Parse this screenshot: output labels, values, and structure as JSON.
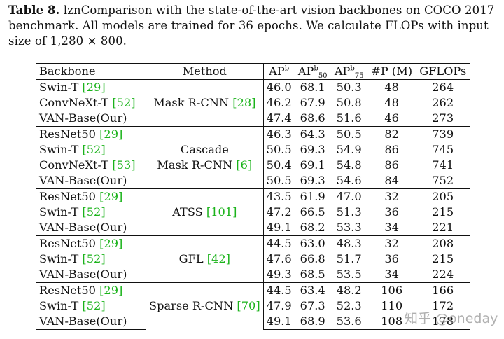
{
  "caption": {
    "label": "Table 8.",
    "text": " lznComparison with the state-of-the-art vision backbones on COCO 2017 benchmark. All models are trained for 36 epochs. We calculate FLOPs with input size of 1,280 × 800."
  },
  "table": {
    "headers": {
      "backbone": "Backbone",
      "method": "Method",
      "ap": "AP",
      "ap_sup": "b",
      "ap50": "AP",
      "ap50_sup": "b",
      "ap50_sub": "50",
      "ap75": "AP",
      "ap75_sup": "b",
      "ap75_sub": "75",
      "params": "#P (M)",
      "gflops": "GFLOPs"
    },
    "groups": [
      {
        "method": "Mask R-CNN",
        "method_line2": "",
        "method_cite": "[28]",
        "rows": [
          {
            "backbone": "Swin-T",
            "cite": "[29]",
            "ap": "46.0",
            "ap50": "68.1",
            "ap75": "50.3",
            "params": "48",
            "gflops": "264",
            "bold": [
              false,
              false,
              false
            ]
          },
          {
            "backbone": "ConvNeXt-T",
            "cite": "[52]",
            "ap": "46.2",
            "ap50": "67.9",
            "ap75": "50.8",
            "params": "48",
            "gflops": "262",
            "bold": [
              false,
              false,
              false
            ]
          },
          {
            "backbone": "VAN-Base(Our)",
            "cite": "",
            "ap": "47.4",
            "ap50": "68.6",
            "ap75": "51.6",
            "params": "46",
            "gflops": "273",
            "bold": [
              true,
              true,
              true
            ]
          }
        ]
      },
      {
        "method": "Cascade",
        "method_line2": "Mask R-CNN",
        "method_cite": "[6]",
        "rows": [
          {
            "backbone": "ResNet50",
            "cite": "[29]",
            "ap": "46.3",
            "ap50": "64.3",
            "ap75": "50.5",
            "params": "82",
            "gflops": "739",
            "bold": [
              false,
              false,
              false
            ]
          },
          {
            "backbone": "Swin-T",
            "cite": "[52]",
            "ap": "50.5",
            "ap50": "69.3",
            "ap75": "54.9",
            "params": "86",
            "gflops": "745",
            "bold": [
              true,
              true,
              true
            ]
          },
          {
            "backbone": "ConvNeXt-T",
            "cite": "[53]",
            "ap": "50.4",
            "ap50": "69.1",
            "ap75": "54.8",
            "params": "86",
            "gflops": "741",
            "bold": [
              false,
              false,
              false
            ]
          },
          {
            "backbone": "VAN-Base(Our)",
            "cite": "",
            "ap": "50.5",
            "ap50": "69.3",
            "ap75": "54.6",
            "params": "84",
            "gflops": "752",
            "bold": [
              true,
              true,
              false
            ]
          }
        ]
      },
      {
        "method": "ATSS",
        "method_line2": "",
        "method_cite": "[101]",
        "rows": [
          {
            "backbone": "ResNet50",
            "cite": "[29]",
            "ap": "43.5",
            "ap50": "61.9",
            "ap75": "47.0",
            "params": "32",
            "gflops": "205",
            "bold": [
              false,
              false,
              false
            ]
          },
          {
            "backbone": "Swin-T",
            "cite": "[52]",
            "ap": "47.2",
            "ap50": "66.5",
            "ap75": "51.3",
            "params": "36",
            "gflops": "215",
            "bold": [
              false,
              false,
              false
            ]
          },
          {
            "backbone": "VAN-Base(Our)",
            "cite": "",
            "ap": "49.1",
            "ap50": "68.2",
            "ap75": "53.3",
            "params": "34",
            "gflops": "221",
            "bold": [
              true,
              true,
              true
            ]
          }
        ]
      },
      {
        "method": "GFL",
        "method_line2": "",
        "method_cite": "[42]",
        "rows": [
          {
            "backbone": "ResNet50",
            "cite": "[29]",
            "ap": "44.5",
            "ap50": "63.0",
            "ap75": "48.3",
            "params": "32",
            "gflops": "208",
            "bold": [
              false,
              false,
              false
            ]
          },
          {
            "backbone": "Swin-T",
            "cite": "[52]",
            "ap": "47.6",
            "ap50": "66.8",
            "ap75": "51.7",
            "params": "36",
            "gflops": "215",
            "bold": [
              false,
              false,
              false
            ]
          },
          {
            "backbone": "VAN-Base(Our)",
            "cite": "",
            "ap": "49.3",
            "ap50": "68.5",
            "ap75": "53.5",
            "params": "34",
            "gflops": "224",
            "bold": [
              true,
              true,
              true
            ]
          }
        ]
      },
      {
        "method": "Sparse R-CNN",
        "method_line2": "",
        "method_cite": "[70]",
        "rows": [
          {
            "backbone": "ResNet50",
            "cite": "[29]",
            "ap": "44.5",
            "ap50": "63.4",
            "ap75": "48.2",
            "params": "106",
            "gflops": "166",
            "bold": [
              false,
              false,
              false
            ]
          },
          {
            "backbone": "Swin-T",
            "cite": "[52]",
            "ap": "47.9",
            "ap50": "67.3",
            "ap75": "52.3",
            "params": "110",
            "gflops": "172",
            "bold": [
              false,
              false,
              false
            ]
          },
          {
            "backbone": "VAN-Base(Our)",
            "cite": "",
            "ap": "49.1",
            "ap50": "68.9",
            "ap75": "53.6",
            "params": "108",
            "gflops": "178",
            "bold": [
              true,
              true,
              true
            ]
          }
        ]
      }
    ]
  },
  "watermark": "知乎 @oneday",
  "colors": {
    "citation": "#1bb31b",
    "text": "#111111",
    "background": "#ffffff"
  }
}
